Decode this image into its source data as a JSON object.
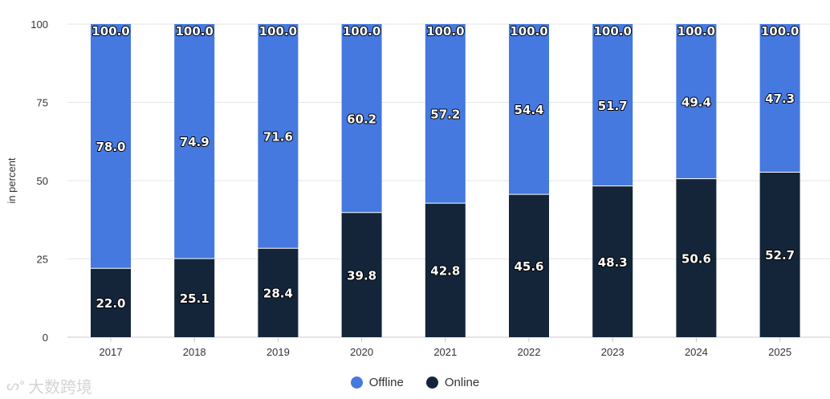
{
  "chart_data": {
    "type": "bar",
    "stacked": true,
    "title": "",
    "xlabel": "",
    "ylabel": "in percent",
    "ylim": [
      0,
      100
    ],
    "yticks": [
      0,
      25,
      50,
      75,
      100
    ],
    "categories": [
      "2017",
      "2018",
      "2019",
      "2020",
      "2021",
      "2022",
      "2023",
      "2024",
      "2025"
    ],
    "totals": [
      "100.0",
      "100.0",
      "100.0",
      "100.0",
      "100.0",
      "100.0",
      "100.0",
      "100.0",
      "100.0"
    ],
    "series": [
      {
        "name": "Online",
        "color": "#14253a",
        "values": [
          22.0,
          25.1,
          28.4,
          39.8,
          42.8,
          45.6,
          48.3,
          50.6,
          52.7
        ]
      },
      {
        "name": "Offline",
        "color": "#4579df",
        "values": [
          78.0,
          74.9,
          71.6,
          60.2,
          57.2,
          54.4,
          51.7,
          49.4,
          47.3
        ]
      }
    ],
    "legend": [
      {
        "name": "Offline",
        "color": "#4579df"
      },
      {
        "name": "Online",
        "color": "#14253a"
      }
    ],
    "legend_position": "bottom-center",
    "grid": true
  },
  "watermark": {
    "text": "大数跨境"
  }
}
